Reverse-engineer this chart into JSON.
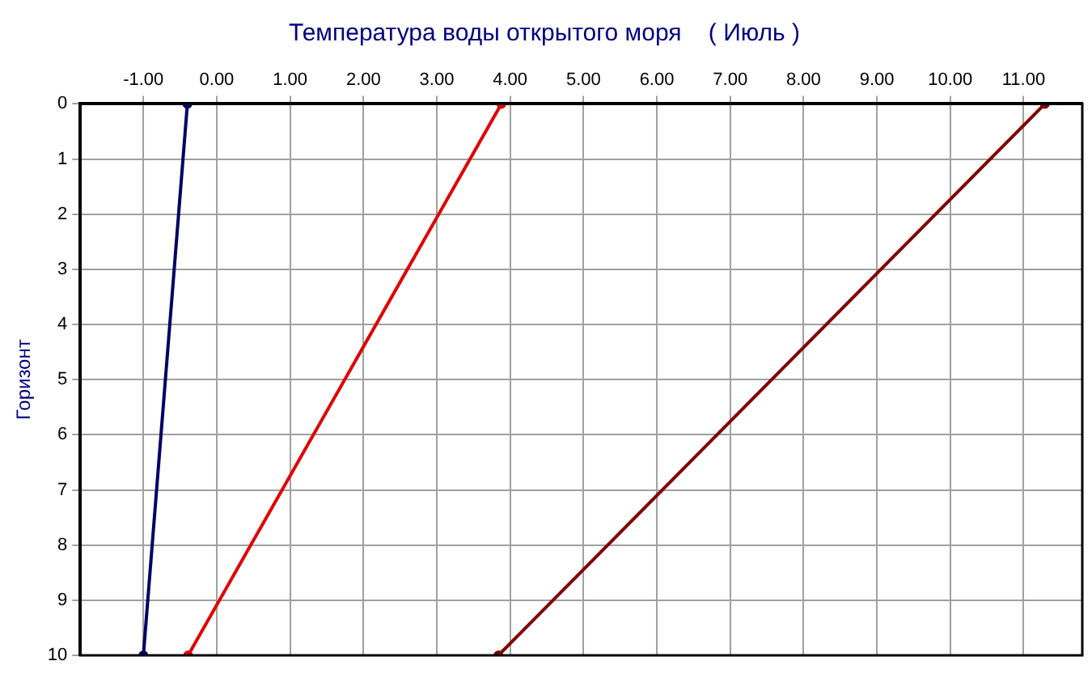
{
  "chart_data": {
    "type": "line",
    "title": "Температура воды открытого моря    ( Июль )",
    "ylabel": "Горизонт",
    "series": [
      {
        "color": "#000066",
        "x": [
          -0.4,
          -1.0
        ],
        "values": [
          0,
          10
        ]
      },
      {
        "color": "#e00000",
        "x": [
          3.88,
          -0.39
        ],
        "values": [
          0,
          10
        ]
      },
      {
        "color": "#800000",
        "x": [
          11.29,
          3.84
        ],
        "values": [
          0,
          10
        ]
      }
    ],
    "xlim": [
      -1.86,
      11.8
    ],
    "xticks": [
      {
        "value": -1,
        "label": "-1.00"
      },
      {
        "value": 0,
        "label": "0.00"
      },
      {
        "value": 1,
        "label": "1.00"
      },
      {
        "value": 2,
        "label": "2.00"
      },
      {
        "value": 3,
        "label": "3.00"
      },
      {
        "value": 4,
        "label": "4.00"
      },
      {
        "value": 5,
        "label": "5.00"
      },
      {
        "value": 6,
        "label": "6.00"
      },
      {
        "value": 7,
        "label": "7.00"
      },
      {
        "value": 8,
        "label": "8.00"
      },
      {
        "value": 9,
        "label": "9.00"
      },
      {
        "value": 10,
        "label": "10.00"
      },
      {
        "value": 11,
        "label": "11.00"
      }
    ],
    "ylim": [
      10,
      0
    ],
    "yticks": [
      0,
      1,
      2,
      3,
      4,
      5,
      6,
      7,
      8,
      9,
      10
    ],
    "grid": true,
    "legend": false,
    "marker": "circle",
    "line_style": "solid"
  }
}
